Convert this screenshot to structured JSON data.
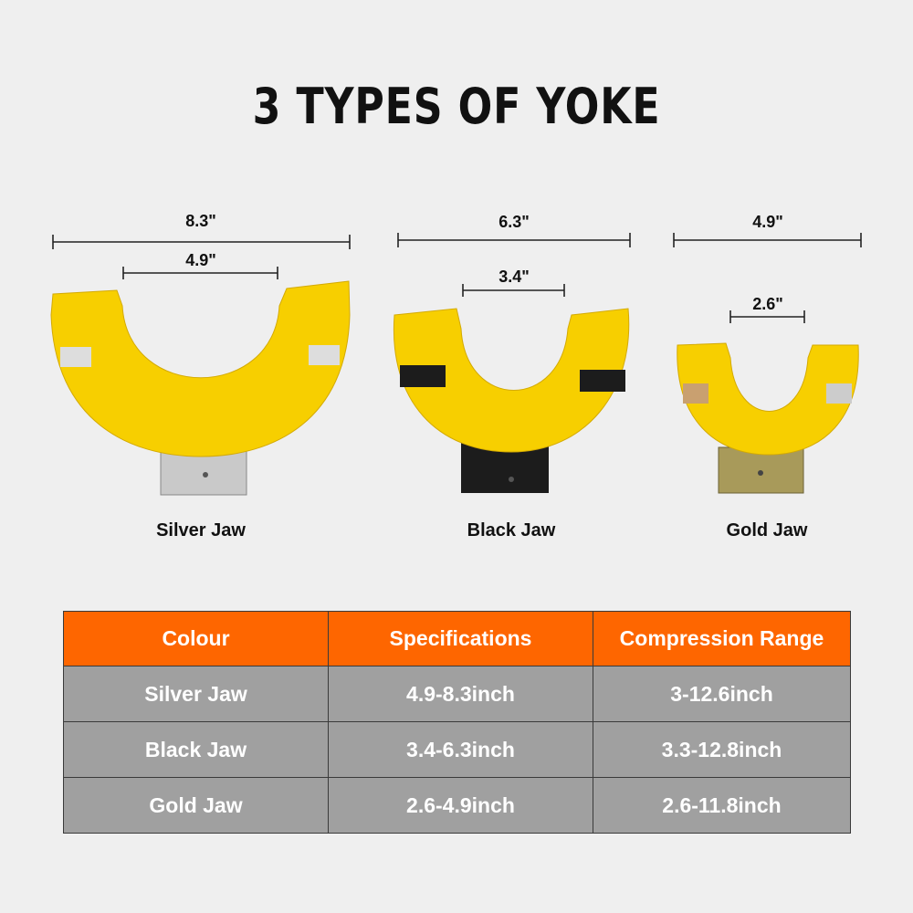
{
  "title": "3 TYPES OF YOKE",
  "yokes": [
    {
      "name": "Silver Jaw",
      "outer": "8.3\"",
      "inner": "4.9\"",
      "jaw_color": "#c8c8c8"
    },
    {
      "name": "Black Jaw",
      "outer": "6.3\"",
      "inner": "3.4\"",
      "jaw_color": "#1c1c1c"
    },
    {
      "name": "Gold Jaw",
      "outer": "4.9\"",
      "inner": "2.6\"",
      "jaw_color": "#a89a5a"
    }
  ],
  "colors": {
    "yoke": "#f7cf00",
    "header": "#fe6600",
    "row": "#a0a0a0"
  },
  "table": {
    "headers": [
      "Colour",
      "Specifications",
      "Compression Range"
    ],
    "rows": [
      [
        "Silver Jaw",
        "4.9-8.3inch",
        "3-12.6inch"
      ],
      [
        "Black Jaw",
        "3.4-6.3inch",
        "3.3-12.8inch"
      ],
      [
        "Gold Jaw",
        "2.6-4.9inch",
        "2.6-11.8inch"
      ]
    ]
  }
}
